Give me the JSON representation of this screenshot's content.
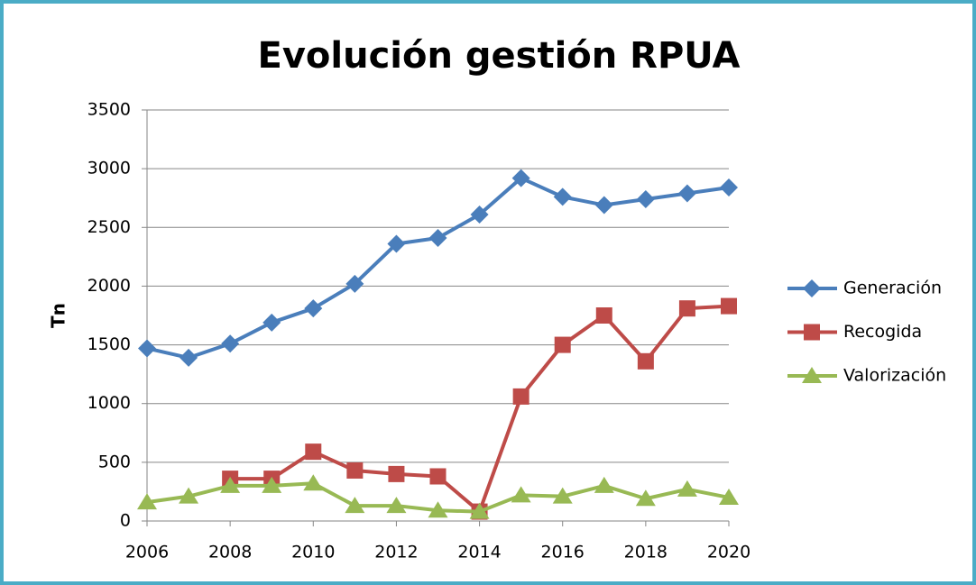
{
  "chart_data": {
    "type": "line",
    "title": "Evolución gestión RPUA",
    "y_label": "Tn",
    "x": [
      2006,
      2007,
      2008,
      2009,
      2010,
      2011,
      2012,
      2013,
      2014,
      2015,
      2016,
      2017,
      2018,
      2019,
      2020
    ],
    "xlim": [
      2006,
      2020
    ],
    "xticks": [
      2006,
      2008,
      2010,
      2012,
      2014,
      2016,
      2018,
      2020
    ],
    "ylim": [
      0,
      3500
    ],
    "yticks": [
      0,
      500,
      1000,
      1500,
      2000,
      2500,
      3000,
      3500
    ],
    "grid": true,
    "legend": "right",
    "series": [
      {
        "name": "Generación",
        "color": "#4a7ebb",
        "marker": "diamond",
        "values": [
          1470,
          1390,
          1510,
          1690,
          1810,
          2020,
          2360,
          2410,
          2610,
          2920,
          2760,
          2690,
          2740,
          2790,
          2840
        ]
      },
      {
        "name": "Recogida",
        "color": "#be4b48",
        "marker": "square",
        "values": [
          null,
          null,
          360,
          360,
          590,
          430,
          400,
          380,
          80,
          1060,
          1500,
          1750,
          1360,
          1810,
          1830
        ]
      },
      {
        "name": "Valorización",
        "color": "#98b954",
        "marker": "triangle",
        "values": [
          160,
          210,
          300,
          300,
          320,
          130,
          130,
          90,
          80,
          220,
          210,
          300,
          190,
          270,
          200
        ]
      }
    ]
  }
}
